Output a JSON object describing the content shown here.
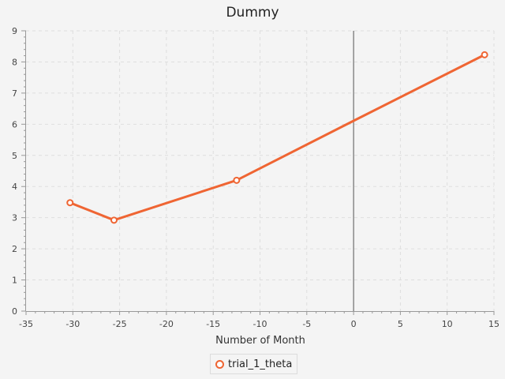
{
  "chart_data": {
    "type": "line",
    "title": "Dummy",
    "xlabel": "Number of Month",
    "ylabel": "",
    "xlim": [
      -35,
      15
    ],
    "ylim": [
      0,
      9
    ],
    "x_ticks": [
      -35,
      -30,
      -25,
      -20,
      -15,
      -10,
      -5,
      0,
      5,
      10,
      15
    ],
    "y_ticks": [
      0,
      1,
      2,
      3,
      4,
      5,
      6,
      7,
      8,
      9
    ],
    "grid": true,
    "legend_position": "bottom-center",
    "series": [
      {
        "name": "trial_1_theta",
        "color": "#ef6533",
        "points": [
          {
            "x": -30.3,
            "y": 3.48
          },
          {
            "x": -25.6,
            "y": 2.92
          },
          {
            "x": -12.5,
            "y": 4.2
          },
          {
            "x": 0,
            "y": 6.11
          },
          {
            "x": 14,
            "y": 8.23
          }
        ],
        "marked_points": [
          0,
          1,
          2,
          4
        ]
      }
    ]
  }
}
